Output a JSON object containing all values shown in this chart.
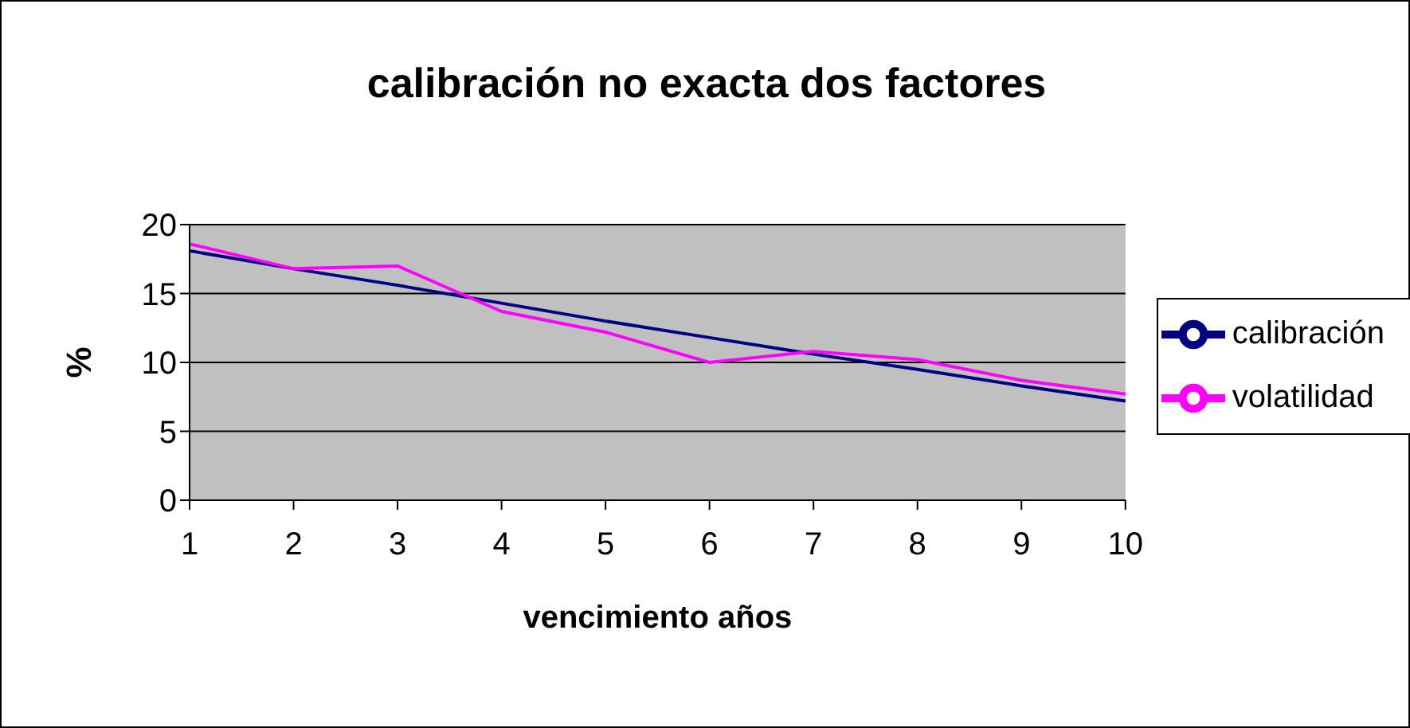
{
  "chart_data": {
    "type": "line",
    "title": "calibración no exacta dos factores",
    "xlabel": "vencimiento años",
    "ylabel": "%",
    "categories": [
      "1",
      "2",
      "3",
      "4",
      "5",
      "6",
      "7",
      "8",
      "9",
      "10"
    ],
    "series": [
      {
        "name": "calibración",
        "color": "#000080",
        "values": [
          18.1,
          16.8,
          15.6,
          14.3,
          13.0,
          11.8,
          10.6,
          9.5,
          8.3,
          7.2
        ]
      },
      {
        "name": "volatilidad",
        "color": "#ff00ff",
        "values": [
          18.6,
          16.8,
          17.0,
          13.7,
          12.2,
          10.0,
          10.8,
          10.2,
          8.7,
          7.7
        ]
      }
    ],
    "ylim": [
      0,
      20
    ],
    "yticks": [
      0,
      5,
      10,
      15,
      20
    ],
    "grid": "y",
    "legend": "right",
    "marker": "none",
    "line_style": "solid"
  }
}
